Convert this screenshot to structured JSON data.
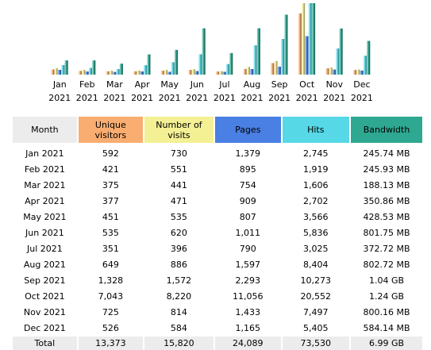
{
  "colors": {
    "unique_visitors": "#f9ad70",
    "visits": "#f4f094",
    "pages": "#4a7fe3",
    "hits": "#57d8e7",
    "bandwidth": "#2ea891",
    "header_bg": "#ececec"
  },
  "chart_data": {
    "type": "bar",
    "categories": [
      [
        "Jan",
        "2021"
      ],
      [
        "Feb",
        "2021"
      ],
      [
        "Mar",
        "2021"
      ],
      [
        "Apr",
        "2021"
      ],
      [
        "May",
        "2021"
      ],
      [
        "Jun",
        "2021"
      ],
      [
        "Jul",
        "2021"
      ],
      [
        "Aug",
        "2021"
      ],
      [
        "Sep",
        "2021"
      ],
      [
        "Oct",
        "2021"
      ],
      [
        "Nov",
        "2021"
      ],
      [
        "Dec",
        "2021"
      ]
    ],
    "series": [
      {
        "name": "Unique visitors",
        "values": [
          592,
          421,
          375,
          377,
          451,
          535,
          351,
          649,
          1328,
          7043,
          725,
          526
        ]
      },
      {
        "name": "Number of visits",
        "values": [
          730,
          551,
          441,
          471,
          535,
          620,
          396,
          886,
          1572,
          8220,
          814,
          584
        ]
      },
      {
        "name": "Pages",
        "values": [
          1379,
          895,
          754,
          909,
          807,
          1011,
          790,
          1597,
          2293,
          11056,
          1433,
          1165
        ]
      },
      {
        "name": "Hits",
        "values": [
          2745,
          1919,
          1606,
          2702,
          3566,
          5836,
          3025,
          8404,
          10273,
          20552,
          7497,
          5405
        ]
      },
      {
        "name": "Bandwidth",
        "values": [
          245.74,
          245.93,
          188.13,
          350.86,
          428.53,
          801.75,
          372.72,
          802.72,
          1040,
          1240,
          800.16,
          584.14
        ]
      }
    ]
  },
  "table": {
    "headers": {
      "month": "Month",
      "unique_line1": "Unique",
      "unique_line2": "visitors",
      "visits_line1": "Number of",
      "visits_line2": "visits",
      "pages": "Pages",
      "hits": "Hits",
      "bandwidth": "Bandwidth"
    },
    "rows": [
      {
        "month": "Jan 2021",
        "unique": "592",
        "visits": "730",
        "pages": "1,379",
        "hits": "2,745",
        "bandwidth": "245.74 MB"
      },
      {
        "month": "Feb 2021",
        "unique": "421",
        "visits": "551",
        "pages": "895",
        "hits": "1,919",
        "bandwidth": "245.93 MB"
      },
      {
        "month": "Mar 2021",
        "unique": "375",
        "visits": "441",
        "pages": "754",
        "hits": "1,606",
        "bandwidth": "188.13 MB"
      },
      {
        "month": "Apr 2021",
        "unique": "377",
        "visits": "471",
        "pages": "909",
        "hits": "2,702",
        "bandwidth": "350.86 MB"
      },
      {
        "month": "May 2021",
        "unique": "451",
        "visits": "535",
        "pages": "807",
        "hits": "3,566",
        "bandwidth": "428.53 MB"
      },
      {
        "month": "Jun 2021",
        "unique": "535",
        "visits": "620",
        "pages": "1,011",
        "hits": "5,836",
        "bandwidth": "801.75 MB"
      },
      {
        "month": "Jul 2021",
        "unique": "351",
        "visits": "396",
        "pages": "790",
        "hits": "3,025",
        "bandwidth": "372.72 MB"
      },
      {
        "month": "Aug 2021",
        "unique": "649",
        "visits": "886",
        "pages": "1,597",
        "hits": "8,404",
        "bandwidth": "802.72 MB"
      },
      {
        "month": "Sep 2021",
        "unique": "1,328",
        "visits": "1,572",
        "pages": "2,293",
        "hits": "10,273",
        "bandwidth": "1.04 GB"
      },
      {
        "month": "Oct 2021",
        "unique": "7,043",
        "visits": "8,220",
        "pages": "11,056",
        "hits": "20,552",
        "bandwidth": "1.24 GB"
      },
      {
        "month": "Nov 2021",
        "unique": "725",
        "visits": "814",
        "pages": "1,433",
        "hits": "7,497",
        "bandwidth": "800.16 MB"
      },
      {
        "month": "Dec 2021",
        "unique": "526",
        "visits": "584",
        "pages": "1,165",
        "hits": "5,405",
        "bandwidth": "584.14 MB"
      }
    ],
    "total": {
      "month": "Total",
      "unique": "13,373",
      "visits": "15,820",
      "pages": "24,089",
      "hits": "73,530",
      "bandwidth": "6.99 GB"
    }
  }
}
